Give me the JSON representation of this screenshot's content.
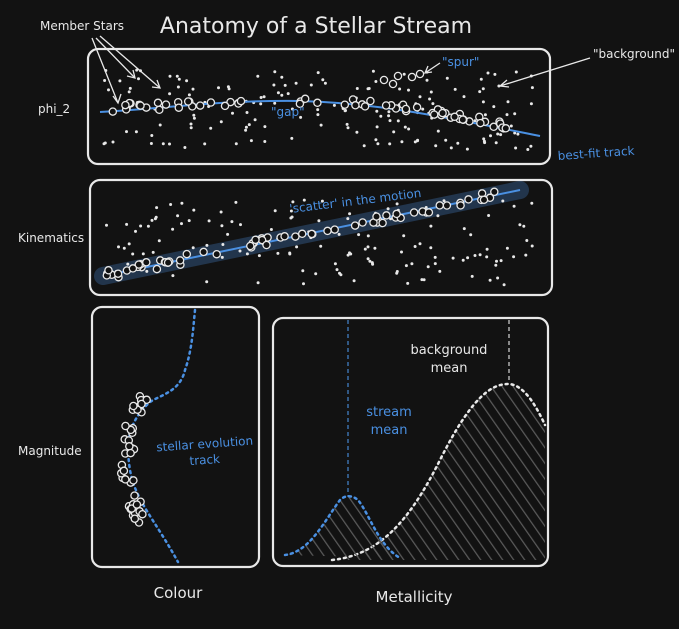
{
  "title": "Anatomy of a Stellar Stream",
  "colors": {
    "background": "#121212",
    "ink": "#e8e8e8",
    "accent": "#4a90e2",
    "hatch": "#555555"
  },
  "annotations": {
    "member_stars": "Member Stars",
    "spur": "\"spur\"",
    "background": "\"background\"",
    "gap": "\"gap\"",
    "best_fit": "best-fit track",
    "scatter": "'scatter' in the motion",
    "stellar_track_l1": "stellar evolution",
    "stellar_track_l2": "track",
    "stream_mean_l1": "stream",
    "stream_mean_l2": "mean",
    "background_mean_l1": "background",
    "background_mean_l2": "mean"
  },
  "labels": {
    "phi2": "phi_2",
    "kinematics": "Kinematics",
    "magnitude": "Magnitude",
    "colour": "Colour",
    "metallicity": "Metallicity"
  }
}
